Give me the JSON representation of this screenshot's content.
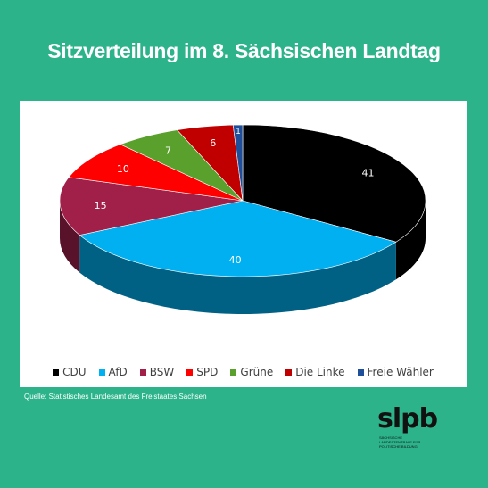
{
  "title": "Sitzverteilung im 8. Sächsischen Landtag",
  "source": "Quelle: Statistisches Landesamt des Freistaates Sachsen",
  "logo": {
    "wordmark": "slpb",
    "tagline": [
      "SÄCHSISCHE",
      "LANDESZENTRALE FÜR",
      "POLITISCHE BILDUNG"
    ]
  },
  "colors": {
    "background": "#2db38a",
    "panel": "#ffffff"
  },
  "chart_data": {
    "type": "pie",
    "style": "3d",
    "legend_position": "bottom",
    "categories": [
      "CDU",
      "AfD",
      "BSW",
      "SPD",
      "Grüne",
      "Die Linke",
      "Freie Wähler"
    ],
    "values": [
      41,
      40,
      15,
      10,
      7,
      6,
      1
    ],
    "colors": [
      "#000000",
      "#00b0f0",
      "#a0204a",
      "#ff0000",
      "#5aa02c",
      "#c00000",
      "#1f4e9a"
    ]
  }
}
